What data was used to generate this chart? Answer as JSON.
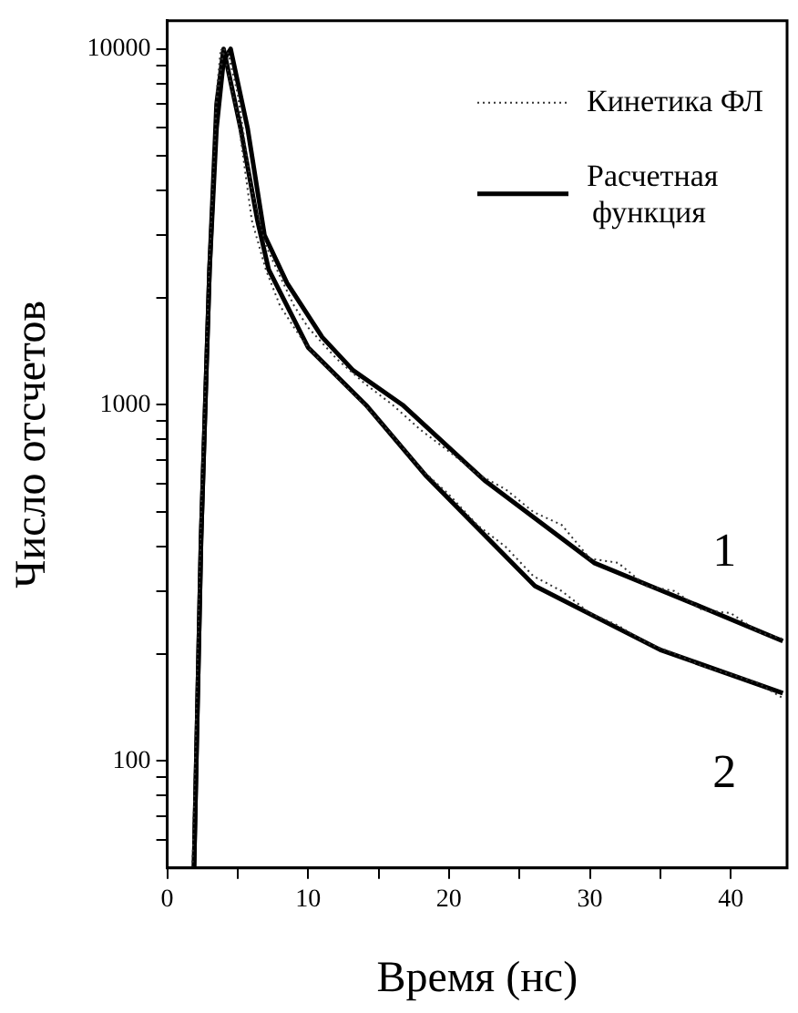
{
  "chart_data": {
    "type": "line",
    "xlabel": "Время (нс)",
    "ylabel": "Число отсчетов",
    "log": "y",
    "xlim": [
      0,
      44
    ],
    "ylim": [
      50,
      12000
    ],
    "xticks": [
      0,
      {
        "value": 5,
        "label": null
      },
      10,
      {
        "value": 15,
        "label": null
      },
      20,
      {
        "value": 25,
        "label": null
      },
      30,
      {
        "value": 35,
        "label": null
      },
      40
    ],
    "yticks": [
      {
        "value": 60,
        "label": null
      },
      {
        "value": 70,
        "label": null
      },
      {
        "value": 80,
        "label": null
      },
      {
        "value": 90,
        "label": null
      },
      100,
      {
        "value": 200,
        "label": null
      },
      {
        "value": 300,
        "label": null
      },
      {
        "value": 400,
        "label": null
      },
      {
        "value": 500,
        "label": null
      },
      {
        "value": 600,
        "label": null
      },
      {
        "value": 700,
        "label": null
      },
      {
        "value": 800,
        "label": null
      },
      {
        "value": 900,
        "label": null
      },
      1000,
      {
        "value": 2000,
        "label": null
      },
      {
        "value": 3000,
        "label": null
      },
      {
        "value": 4000,
        "label": null
      },
      {
        "value": 5000,
        "label": null
      },
      {
        "value": 6000,
        "label": null
      },
      {
        "value": 7000,
        "label": null
      },
      {
        "value": 8000,
        "label": null
      },
      {
        "value": 9000,
        "label": null
      },
      10000
    ],
    "grid": false,
    "legend": "top right",
    "marker": "none",
    "series": [
      {
        "name": "Кинетика ФЛ",
        "color": "#333333",
        "line_style": "dotted",
        "x": [
          1.8,
          2.4,
          3,
          3.5,
          4,
          4.3,
          5,
          6,
          7,
          8,
          9,
          10,
          12,
          14,
          16,
          18,
          20,
          22,
          24,
          26,
          28,
          30,
          32,
          34,
          36,
          38,
          40,
          42,
          43.7
        ],
        "values": [
          50,
          500,
          2600,
          7000,
          10000,
          9800,
          7500,
          4000,
          2800,
          2300,
          1900,
          1650,
          1350,
          1150,
          1000,
          850,
          740,
          640,
          580,
          500,
          460,
          370,
          360,
          310,
          300,
          265,
          260,
          230,
          220
        ]
      },
      {
        "name": "Расчетная функция",
        "color": "#000000",
        "line_style": "solid",
        "x": [
          1.9,
          2.4,
          3,
          3.5,
          4,
          4.5,
          5.7,
          6.9,
          8.5,
          11,
          13.2,
          16.7,
          22.6,
          30.3,
          37,
          43.7
        ],
        "values": [
          50,
          420,
          2400,
          6000,
          9300,
          10000,
          6000,
          3000,
          2200,
          1550,
          1250,
          1000,
          610,
          360,
          280,
          217
        ]
      },
      {
        "color": "#333333",
        "line_style": "dotted",
        "x": [
          1.8,
          2.4,
          3,
          3.5,
          3.8,
          4,
          5,
          6,
          7,
          8,
          9,
          10,
          12,
          14,
          16,
          18,
          20,
          22,
          24,
          26,
          28,
          30,
          32,
          34,
          36,
          38,
          40,
          42,
          43.7
        ],
        "values": [
          50,
          480,
          2500,
          7500,
          10000,
          9800,
          6500,
          3300,
          2400,
          1900,
          1650,
          1450,
          1200,
          1000,
          820,
          660,
          560,
          460,
          400,
          330,
          300,
          260,
          240,
          215,
          200,
          185,
          175,
          165,
          150
        ]
      },
      {
        "color": "#000000",
        "line_style": "solid",
        "x": [
          1.9,
          2.4,
          3,
          3.5,
          4,
          5.2,
          6.4,
          7.2,
          10,
          14.1,
          18.4,
          26.1,
          35,
          43.7
        ],
        "values": [
          50,
          420,
          2400,
          7000,
          10000,
          6000,
          3300,
          2400,
          1450,
          1000,
          630,
          310,
          205,
          155
        ]
      }
    ],
    "annotations": [
      "1",
      "2"
    ]
  }
}
